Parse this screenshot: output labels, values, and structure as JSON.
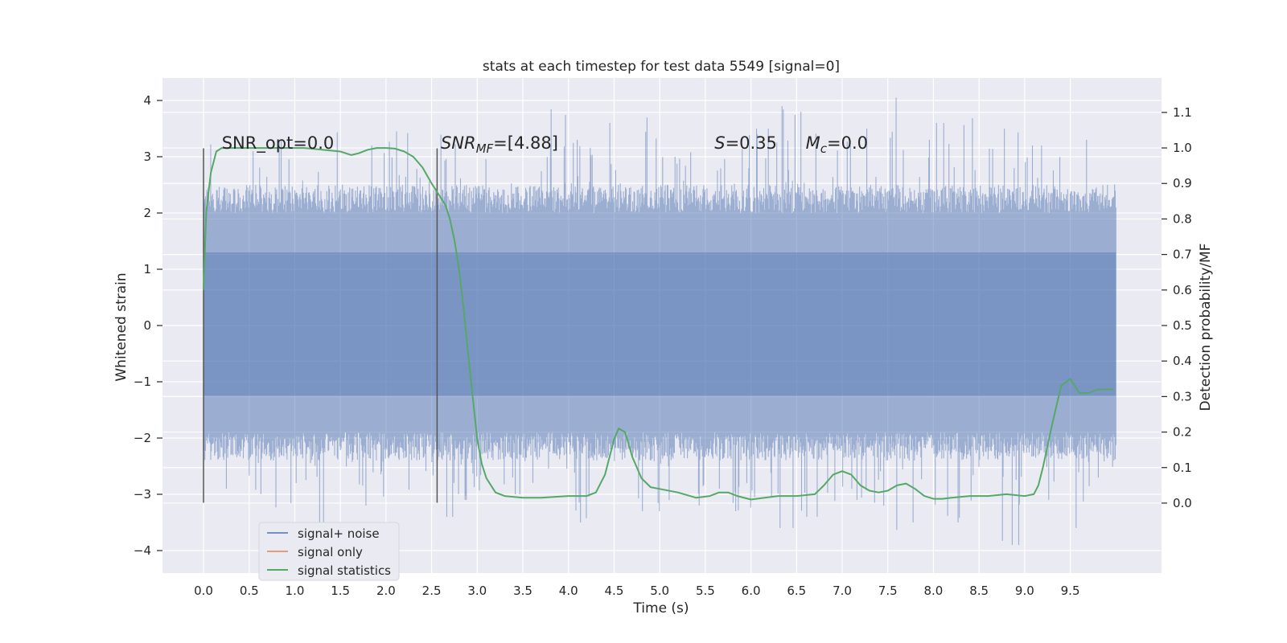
{
  "chart_data": {
    "type": "line",
    "title": "stats at each timestep for test data 5549 [signal=0]",
    "xlabel": "Time (s)",
    "ylabel": "Whitened strain",
    "y2label": "Detection probability/MF",
    "xlim": [
      -0.45,
      10.5
    ],
    "ylim": [
      -4.4,
      4.4
    ],
    "y2lim": [
      -0.197,
      1.197
    ],
    "x_ticks": [
      0.0,
      0.5,
      1.0,
      1.5,
      2.0,
      2.5,
      3.0,
      3.5,
      4.0,
      4.5,
      5.0,
      5.5,
      6.0,
      6.5,
      7.0,
      7.5,
      8.0,
      8.5,
      9.0,
      9.5
    ],
    "x_tick_labels": [
      "0.0",
      "0.5",
      "1.0",
      "1.5",
      "2.0",
      "2.5",
      "3.0",
      "3.5",
      "4.0",
      "4.5",
      "5.0",
      "5.5",
      "6.0",
      "6.5",
      "7.0",
      "7.5",
      "8.0",
      "8.5",
      "9.0",
      "9.5"
    ],
    "y_ticks": [
      4,
      3,
      2,
      1,
      0,
      -1,
      -2,
      -3,
      -4
    ],
    "y_tick_labels": [
      "4",
      "3",
      "2",
      "1",
      "0",
      "−1",
      "−2",
      "−3",
      "−4"
    ],
    "y2_ticks": [
      1.1,
      1.0,
      0.9,
      0.8,
      0.7,
      0.6,
      0.5,
      0.4,
      0.3,
      0.2,
      0.1,
      0.0
    ],
    "y2_tick_labels": [
      "1.1",
      "1.0",
      "0.9",
      "0.8",
      "0.7",
      "0.6",
      "0.5",
      "0.4",
      "0.3",
      "0.2",
      "0.1",
      "0.0"
    ],
    "grid": true,
    "legend_position": "lower-left",
    "colors": {
      "background": "#eaeaf2",
      "grid": "#ffffff",
      "noise": "#4c72b0",
      "signal_only": "#dd8452",
      "statistics": "#55a868",
      "vline": "#555555"
    },
    "annotations": [
      {
        "label": "SNR_opt=0.0",
        "x": 0.2,
        "y": 3.3
      },
      {
        "label": "SNR",
        "sub": "MF",
        "after": "=[4.88]",
        "x": 2.6,
        "y": 3.3
      },
      {
        "label": "S",
        "after": "=0.35",
        "x": 5.6,
        "y": 3.3
      },
      {
        "label": "M",
        "sub": "c",
        "after": "=0.0",
        "x": 6.6,
        "y": 3.3
      }
    ],
    "vertical_lines": [
      {
        "x": 0.0,
        "y_from": -3.15,
        "y_to": 3.15
      },
      {
        "x": 2.56,
        "y_from": -3.15,
        "y_to": 3.15
      }
    ],
    "noise_series": {
      "name": "signal+ noise",
      "x_range": [
        0.0,
        10.0
      ],
      "core_band": [
        -1.9,
        2.0
      ],
      "peaks_high": [
        3.4,
        2.6,
        3.1,
        3.3,
        3.0,
        3.5,
        2.8,
        3.2,
        3.6,
        2.9,
        3.5,
        3.3,
        3.0,
        3.1,
        2.9,
        4.0,
        3.3,
        3.6,
        3.2,
        3.7,
        3.0,
        3.4,
        3.1,
        3.6,
        3.5,
        3.9,
        3.8,
        3.2,
        3.4,
        3.5,
        4.05,
        3.3,
        3.6,
        3.7,
        3.4,
        3.5,
        3.2,
        3.1,
        3.3,
        2.7
      ],
      "peaks_low": [
        -2.4,
        -3.8,
        -3.0,
        -3.3,
        -2.8,
        -3.5,
        -3.0,
        -3.2,
        -2.6,
        -3.0,
        -3.4,
        -3.1,
        -3.2,
        -3.0,
        -2.9,
        -3.3,
        -3.5,
        -3.8,
        -3.0,
        -3.3,
        -3.1,
        -3.2,
        -2.9,
        -3.3,
        -3.9,
        -3.6,
        -3.4,
        -3.3,
        -3.1,
        -3.2,
        -3.8,
        -3.5,
        -3.8,
        -3.5,
        -3.2,
        -3.9,
        -3.4,
        -3.1,
        -3.6,
        -2.8
      ]
    },
    "statistics_series": {
      "name": "signal statistics",
      "x": [
        0.0,
        0.03,
        0.08,
        0.14,
        0.2,
        0.3,
        0.5,
        0.8,
        1.1,
        1.3,
        1.5,
        1.62,
        1.7,
        1.8,
        1.9,
        2.0,
        2.1,
        2.2,
        2.3,
        2.4,
        2.5,
        2.6,
        2.65,
        2.7,
        2.75,
        2.8,
        2.85,
        2.9,
        2.95,
        3.0,
        3.05,
        3.1,
        3.2,
        3.3,
        3.5,
        3.7,
        4.0,
        4.2,
        4.3,
        4.4,
        4.5,
        4.55,
        4.62,
        4.7,
        4.8,
        4.9,
        5.0,
        5.2,
        5.4,
        5.55,
        5.65,
        5.75,
        5.85,
        6.0,
        6.15,
        6.3,
        6.5,
        6.7,
        6.8,
        6.9,
        7.0,
        7.1,
        7.2,
        7.3,
        7.4,
        7.5,
        7.6,
        7.7,
        7.8,
        7.9,
        8.0,
        8.1,
        8.2,
        8.4,
        8.6,
        8.8,
        9.0,
        9.1,
        9.15,
        9.2,
        9.3,
        9.4,
        9.5,
        9.55,
        9.6,
        9.7,
        9.8,
        9.9,
        9.97
      ],
      "y": [
        0.6,
        0.82,
        0.93,
        0.99,
        1.0,
        1.0,
        1.0,
        1.0,
        1.0,
        0.995,
        0.99,
        0.98,
        0.985,
        0.995,
        1.0,
        1.0,
        0.998,
        0.99,
        0.975,
        0.945,
        0.9,
        0.86,
        0.84,
        0.8,
        0.74,
        0.66,
        0.55,
        0.42,
        0.3,
        0.18,
        0.11,
        0.07,
        0.03,
        0.02,
        0.015,
        0.015,
        0.02,
        0.02,
        0.03,
        0.08,
        0.18,
        0.21,
        0.2,
        0.13,
        0.07,
        0.045,
        0.04,
        0.03,
        0.015,
        0.02,
        0.03,
        0.03,
        0.02,
        0.01,
        0.015,
        0.02,
        0.02,
        0.025,
        0.05,
        0.08,
        0.09,
        0.08,
        0.05,
        0.035,
        0.03,
        0.035,
        0.05,
        0.055,
        0.04,
        0.02,
        0.012,
        0.012,
        0.015,
        0.02,
        0.02,
        0.025,
        0.02,
        0.025,
        0.05,
        0.1,
        0.22,
        0.33,
        0.35,
        0.33,
        0.31,
        0.31,
        0.32,
        0.32,
        0.32
      ]
    },
    "legend": [
      {
        "name": "signal+ noise",
        "color": "#4c72b0"
      },
      {
        "name": "signal only",
        "color": "#dd8452"
      },
      {
        "name": "signal statistics",
        "color": "#55a868"
      }
    ]
  }
}
